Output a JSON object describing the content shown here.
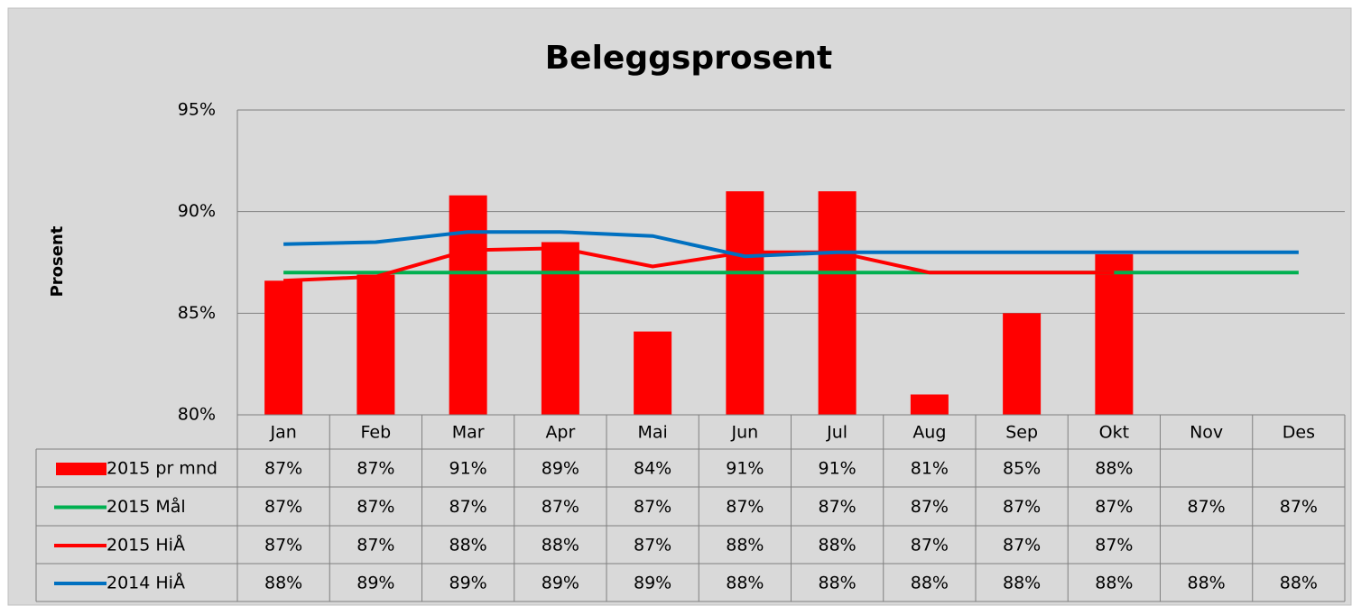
{
  "chart_data": {
    "type": "bar",
    "title": "Beleggsprosent",
    "y_label": "Prosent",
    "categories": [
      "Jan",
      "Feb",
      "Mar",
      "Apr",
      "Mai",
      "Jun",
      "Jul",
      "Aug",
      "Sep",
      "Okt",
      "Nov",
      "Des"
    ],
    "ylim": [
      80,
      95
    ],
    "yticks": [
      {
        "value": 80,
        "label": "80%"
      },
      {
        "value": 85,
        "label": "85%"
      },
      {
        "value": 90,
        "label": "90%"
      },
      {
        "value": 95,
        "label": "95%"
      }
    ],
    "grid": true,
    "series": [
      {
        "name": "2015 pr mnd",
        "type": "bar",
        "color": "#ff0000",
        "values": [
          86.6,
          86.9,
          90.8,
          88.5,
          84.1,
          91.0,
          91.0,
          81.0,
          85.0,
          87.9,
          null,
          null
        ],
        "value_labels": [
          "87%",
          "87%",
          "91%",
          "89%",
          "84%",
          "91%",
          "91%",
          "81%",
          "85%",
          "88%",
          null,
          null
        ]
      },
      {
        "name": "2015 Mål",
        "type": "line",
        "color": "#00b050",
        "values": [
          87,
          87,
          87,
          87,
          87,
          87,
          87,
          87,
          87,
          87,
          87,
          87
        ],
        "value_labels": [
          "87%",
          "87%",
          "87%",
          "87%",
          "87%",
          "87%",
          "87%",
          "87%",
          "87%",
          "87%",
          "87%",
          "87%"
        ]
      },
      {
        "name": "2015 HiÅ",
        "type": "line",
        "color": "#ff0000",
        "values": [
          86.6,
          86.8,
          88.1,
          88.2,
          87.3,
          88.0,
          88.0,
          87.0,
          87.0,
          87.0,
          null,
          null
        ],
        "value_labels": [
          "87%",
          "87%",
          "88%",
          "88%",
          "87%",
          "88%",
          "88%",
          "87%",
          "87%",
          "87%",
          null,
          null
        ]
      },
      {
        "name": "2014 HiÅ",
        "type": "line",
        "color": "#0070c0",
        "values": [
          88.4,
          88.5,
          89.0,
          89.0,
          88.8,
          87.8,
          88.0,
          88.0,
          88.0,
          88.0,
          88.0,
          88.0
        ],
        "value_labels": [
          "88%",
          "89%",
          "89%",
          "89%",
          "89%",
          "88%",
          "88%",
          "88%",
          "88%",
          "88%",
          "88%",
          "88%"
        ]
      }
    ]
  }
}
